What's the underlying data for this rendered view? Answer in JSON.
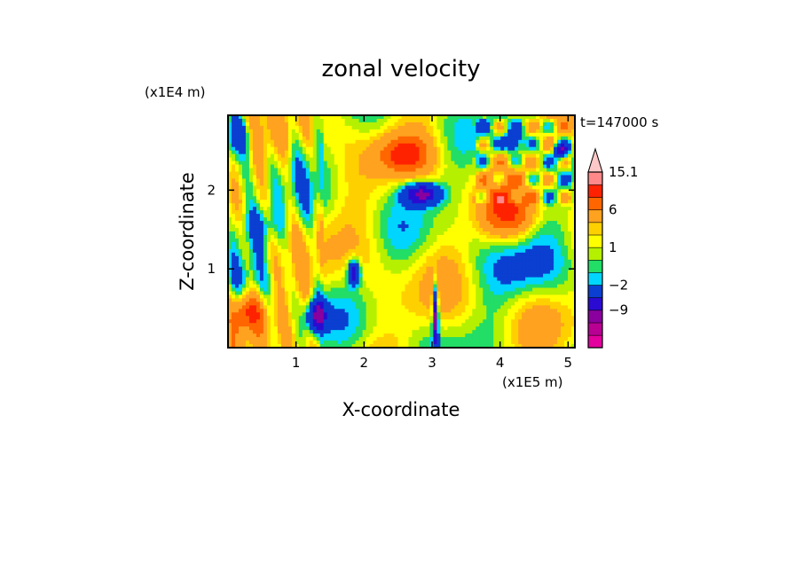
{
  "chart_data": {
    "type": "heatmap",
    "title": "zonal velocity",
    "xlabel": "X-coordinate",
    "ylabel": "Z-coordinate",
    "x_unit": "(x1E5 m)",
    "y_unit": "(x1E4 m)",
    "time_label": "t=147000 s",
    "xlim": [
      0,
      5.1
    ],
    "ylim": [
      0,
      2.95
    ],
    "x_ticks": [
      "1",
      "2",
      "3",
      "4",
      "5"
    ],
    "y_ticks": [
      "1",
      "2"
    ],
    "colorbar": {
      "levels": [
        -15,
        -12,
        -9,
        -6,
        -2,
        -1,
        0,
        1,
        2,
        3,
        6,
        9,
        12,
        15.1
      ],
      "tick_labels": [
        "15.1",
        "6",
        "1",
        "-2",
        "-9"
      ],
      "colors": [
        "#e3009d",
        "#b80093",
        "#8a009e",
        "#2b0bd1",
        "#0a3fd1",
        "#00d5ff",
        "#22dd66",
        "#b5f000",
        "#ffff00",
        "#ffd000",
        "#ffa220",
        "#ff6600",
        "#ff2200",
        "#ff8888",
        "#ffc8c8"
      ],
      "extend": "max"
    },
    "features": [
      {
        "x": 2.6,
        "z": 2.45,
        "u": 12
      },
      {
        "x": 2.8,
        "z": 1.95,
        "u": -9
      },
      {
        "x": 0.3,
        "z": 0.45,
        "u": 12
      },
      {
        "x": 1.3,
        "z": 0.4,
        "u": -9
      },
      {
        "x": 1.8,
        "z": 0.95,
        "u": -9
      },
      {
        "x": 3.05,
        "z": 0.3,
        "u": -6
      },
      {
        "x": 4.2,
        "z": 2.0,
        "u": 6
      },
      {
        "x": 4.1,
        "z": 1.7,
        "u": 9
      },
      {
        "x": 4.35,
        "z": 1.0,
        "u": 0
      },
      {
        "x": 0.15,
        "z": 2.7,
        "u": -6
      },
      {
        "x": 0.45,
        "z": 1.55,
        "u": -2
      },
      {
        "x": 4.25,
        "z": 2.6,
        "u": -9
      },
      {
        "x": 4.9,
        "z": 2.5,
        "u": -9
      }
    ]
  }
}
